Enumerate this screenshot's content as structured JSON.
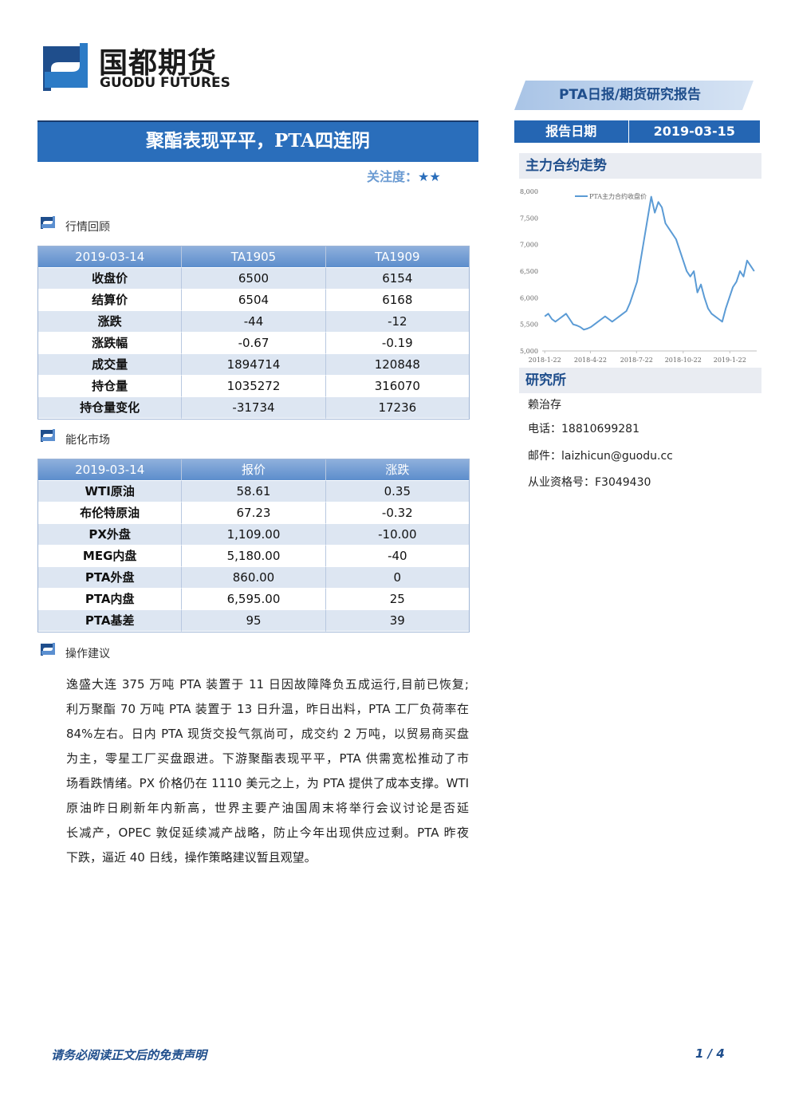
{
  "header": {
    "logo_cn": "国都期货",
    "logo_en": "GUODU FUTURES",
    "report_type": "PTA日报/期货研究报告"
  },
  "title": "聚酯表现平平，PTA四连阴",
  "attention": {
    "label": "关注度：",
    "stars": "★★"
  },
  "report_date": {
    "label": "报告日期",
    "value": "2019-03-15"
  },
  "sections": [
    {
      "title": "行情回顾",
      "table": {
        "header": [
          "2019-03-14",
          "TA1905",
          "TA1909"
        ],
        "rows": [
          [
            "收盘价",
            "6500",
            "6154"
          ],
          [
            "结算价",
            "6504",
            "6168"
          ],
          [
            "涨跌",
            "-44",
            "-12"
          ],
          [
            "涨跌幅",
            "-0.67",
            "-0.19"
          ],
          [
            "成交量",
            "1894714",
            "120848"
          ],
          [
            "持仓量",
            "1035272",
            "316070"
          ],
          [
            "持仓量变化",
            "-31734",
            "17236"
          ]
        ]
      }
    },
    {
      "title": "能化市场",
      "table": {
        "header": [
          "2019-03-14",
          "报价",
          "涨跌"
        ],
        "rows": [
          [
            "WTI原油",
            "58.61",
            "0.35"
          ],
          [
            "布伦特原油",
            "67.23",
            "-0.32"
          ],
          [
            "PX外盘",
            "1,109.00",
            "-10.00"
          ],
          [
            "MEG内盘",
            "5,180.00",
            "-40"
          ],
          [
            "PTA外盘",
            "860.00",
            "0"
          ],
          [
            "PTA内盘",
            "6,595.00",
            "25"
          ],
          [
            "PTA基差",
            "95",
            "39"
          ]
        ]
      }
    },
    {
      "title": "操作建议",
      "paragraph_lines": [
        "逸盛大连 375 万吨 PTA 装置于 11 日因故障降负五成运行,目前已恢复;",
        "利万聚酯 70 万吨 PTA 装置于 13 日升温，昨日出料，PTA 工厂负荷率在",
        "84%左右。日内 PTA 现货交投气氛尚可，成交约 2 万吨，以贸易商买盘",
        "为主，零星工厂买盘跟进。下游聚酯表现平平，PTA 供需宽松推动了市",
        "场看跌情绪。PX 价格仍在 1110 美元之上，为 PTA 提供了成本支撑。WTI",
        "原油昨日刷新年内新高，世界主要产油国周末将举行会议讨论是否延",
        "长减产，OPEC 敦促延续减产战略，防止今年出现供应过剩。PTA 昨夜",
        "下跌，逼近 40 日线，操作策略建议暂且观望。"
      ]
    }
  ],
  "sidebar": {
    "chart_title": "主力合约走势",
    "research_title": "研究所",
    "research_lines": [
      "赖治存",
      "电话：18810699281",
      "邮件：laizhicun@guodu.cc",
      "从业资格号：F3049430"
    ]
  },
  "chart_data": {
    "type": "line",
    "x": [
      "2018-1-22",
      "2018-1-29",
      "2018-2-5",
      "2018-2-12",
      "2018-2-19",
      "2018-2-26",
      "2018-3-5",
      "2018-3-12",
      "2018-3-19",
      "2018-3-26",
      "2018-4-2",
      "2018-4-9",
      "2018-4-16",
      "2018-4-23",
      "2018-4-30",
      "2018-5-7",
      "2018-5-14",
      "2018-5-21",
      "2018-5-28",
      "2018-6-4",
      "2018-6-11",
      "2018-6-18",
      "2018-6-25",
      "2018-7-2",
      "2018-7-9",
      "2018-7-16",
      "2018-7-23",
      "2018-7-30",
      "2018-8-6",
      "2018-8-13",
      "2018-8-20",
      "2018-8-27",
      "2018-9-3",
      "2018-9-10",
      "2018-9-17",
      "2018-9-24",
      "2018-10-1",
      "2018-10-8",
      "2018-10-15",
      "2018-10-22",
      "2018-10-29",
      "2018-11-5",
      "2018-11-12",
      "2018-11-19",
      "2018-11-26",
      "2018-12-3",
      "2018-12-10",
      "2018-12-17",
      "2018-12-24",
      "2018-12-31",
      "2019-1-7",
      "2019-1-14",
      "2019-1-21",
      "2019-1-28",
      "2019-2-4",
      "2019-2-11",
      "2019-2-18",
      "2019-2-25",
      "2019-3-4",
      "2019-3-11"
    ],
    "series": [
      {
        "name": "PTA主力合约收盘价",
        "color": "#5b9bd5",
        "values": [
          5650,
          5700,
          5600,
          5550,
          5600,
          5650,
          5700,
          5600,
          5500,
          5480,
          5450,
          5400,
          5420,
          5450,
          5500,
          5550,
          5600,
          5650,
          5600,
          5550,
          5600,
          5650,
          5700,
          5750,
          5900,
          6100,
          6300,
          6700,
          7100,
          7500,
          7900,
          7600,
          7800,
          7700,
          7400,
          7300,
          7200,
          7100,
          6900,
          6700,
          6500,
          6400,
          6500,
          6100,
          6250,
          6000,
          5800,
          5700,
          5650,
          5600,
          5550,
          5800,
          6000,
          6200,
          6300,
          6500,
          6400,
          6700,
          6600,
          6500
        ]
      }
    ],
    "xlim": [
      "2018-1-17",
      "2019-3-16"
    ],
    "xticks": [
      "2018-1-22",
      "2018-4-22",
      "2018-7-22",
      "2018-10-22",
      "2019-1-22"
    ],
    "ylim": [
      5000,
      8000
    ],
    "yticks": [
      {
        "value": 5000,
        "label": "5,000"
      },
      {
        "value": 5500,
        "label": "5,500"
      },
      {
        "value": 6000,
        "label": "6,000"
      },
      {
        "value": 6500,
        "label": "6,500"
      },
      {
        "value": 7000,
        "label": "7,000"
      },
      {
        "value": 7500,
        "label": "7,500"
      },
      {
        "value": 8000,
        "label": "8,000"
      }
    ],
    "legend": "top"
  },
  "footer": {
    "disclaimer": "请务必阅读正文后的免责声明",
    "page": "1 / 4"
  }
}
